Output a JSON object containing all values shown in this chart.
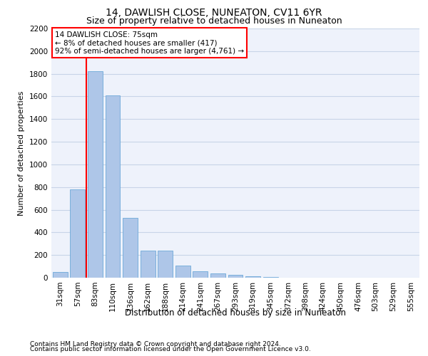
{
  "title1": "14, DAWLISH CLOSE, NUNEATON, CV11 6YR",
  "title2": "Size of property relative to detached houses in Nuneaton",
  "xlabel": "Distribution of detached houses by size in Nuneaton",
  "ylabel": "Number of detached properties",
  "categories": [
    "31sqm",
    "57sqm",
    "83sqm",
    "110sqm",
    "136sqm",
    "162sqm",
    "188sqm",
    "214sqm",
    "241sqm",
    "267sqm",
    "293sqm",
    "319sqm",
    "345sqm",
    "372sqm",
    "398sqm",
    "424sqm",
    "450sqm",
    "476sqm",
    "503sqm",
    "529sqm",
    "555sqm"
  ],
  "values": [
    50,
    780,
    1820,
    1610,
    525,
    240,
    240,
    107,
    55,
    40,
    25,
    10,
    5,
    3,
    2,
    1,
    1,
    0,
    0,
    0,
    0
  ],
  "bar_color": "#aec6e8",
  "bar_edge_color": "#5a9fd4",
  "vline_x": 1.5,
  "vline_color": "red",
  "annotation_text": "14 DAWLISH CLOSE: 75sqm\n← 8% of detached houses are smaller (417)\n92% of semi-detached houses are larger (4,761) →",
  "annotation_box_color": "white",
  "annotation_box_edge": "red",
  "ylim": [
    0,
    2200
  ],
  "yticks": [
    0,
    200,
    400,
    600,
    800,
    1000,
    1200,
    1400,
    1600,
    1800,
    2000,
    2200
  ],
  "footer1": "Contains HM Land Registry data © Crown copyright and database right 2024.",
  "footer2": "Contains public sector information licensed under the Open Government Licence v3.0.",
  "bg_color": "#eef2fb",
  "grid_color": "#c8d4e8",
  "title1_fontsize": 10,
  "title2_fontsize": 9,
  "ylabel_fontsize": 8,
  "xlabel_fontsize": 8.5,
  "tick_fontsize": 7.5,
  "annotation_fontsize": 7.5,
  "footer_fontsize": 6.5
}
